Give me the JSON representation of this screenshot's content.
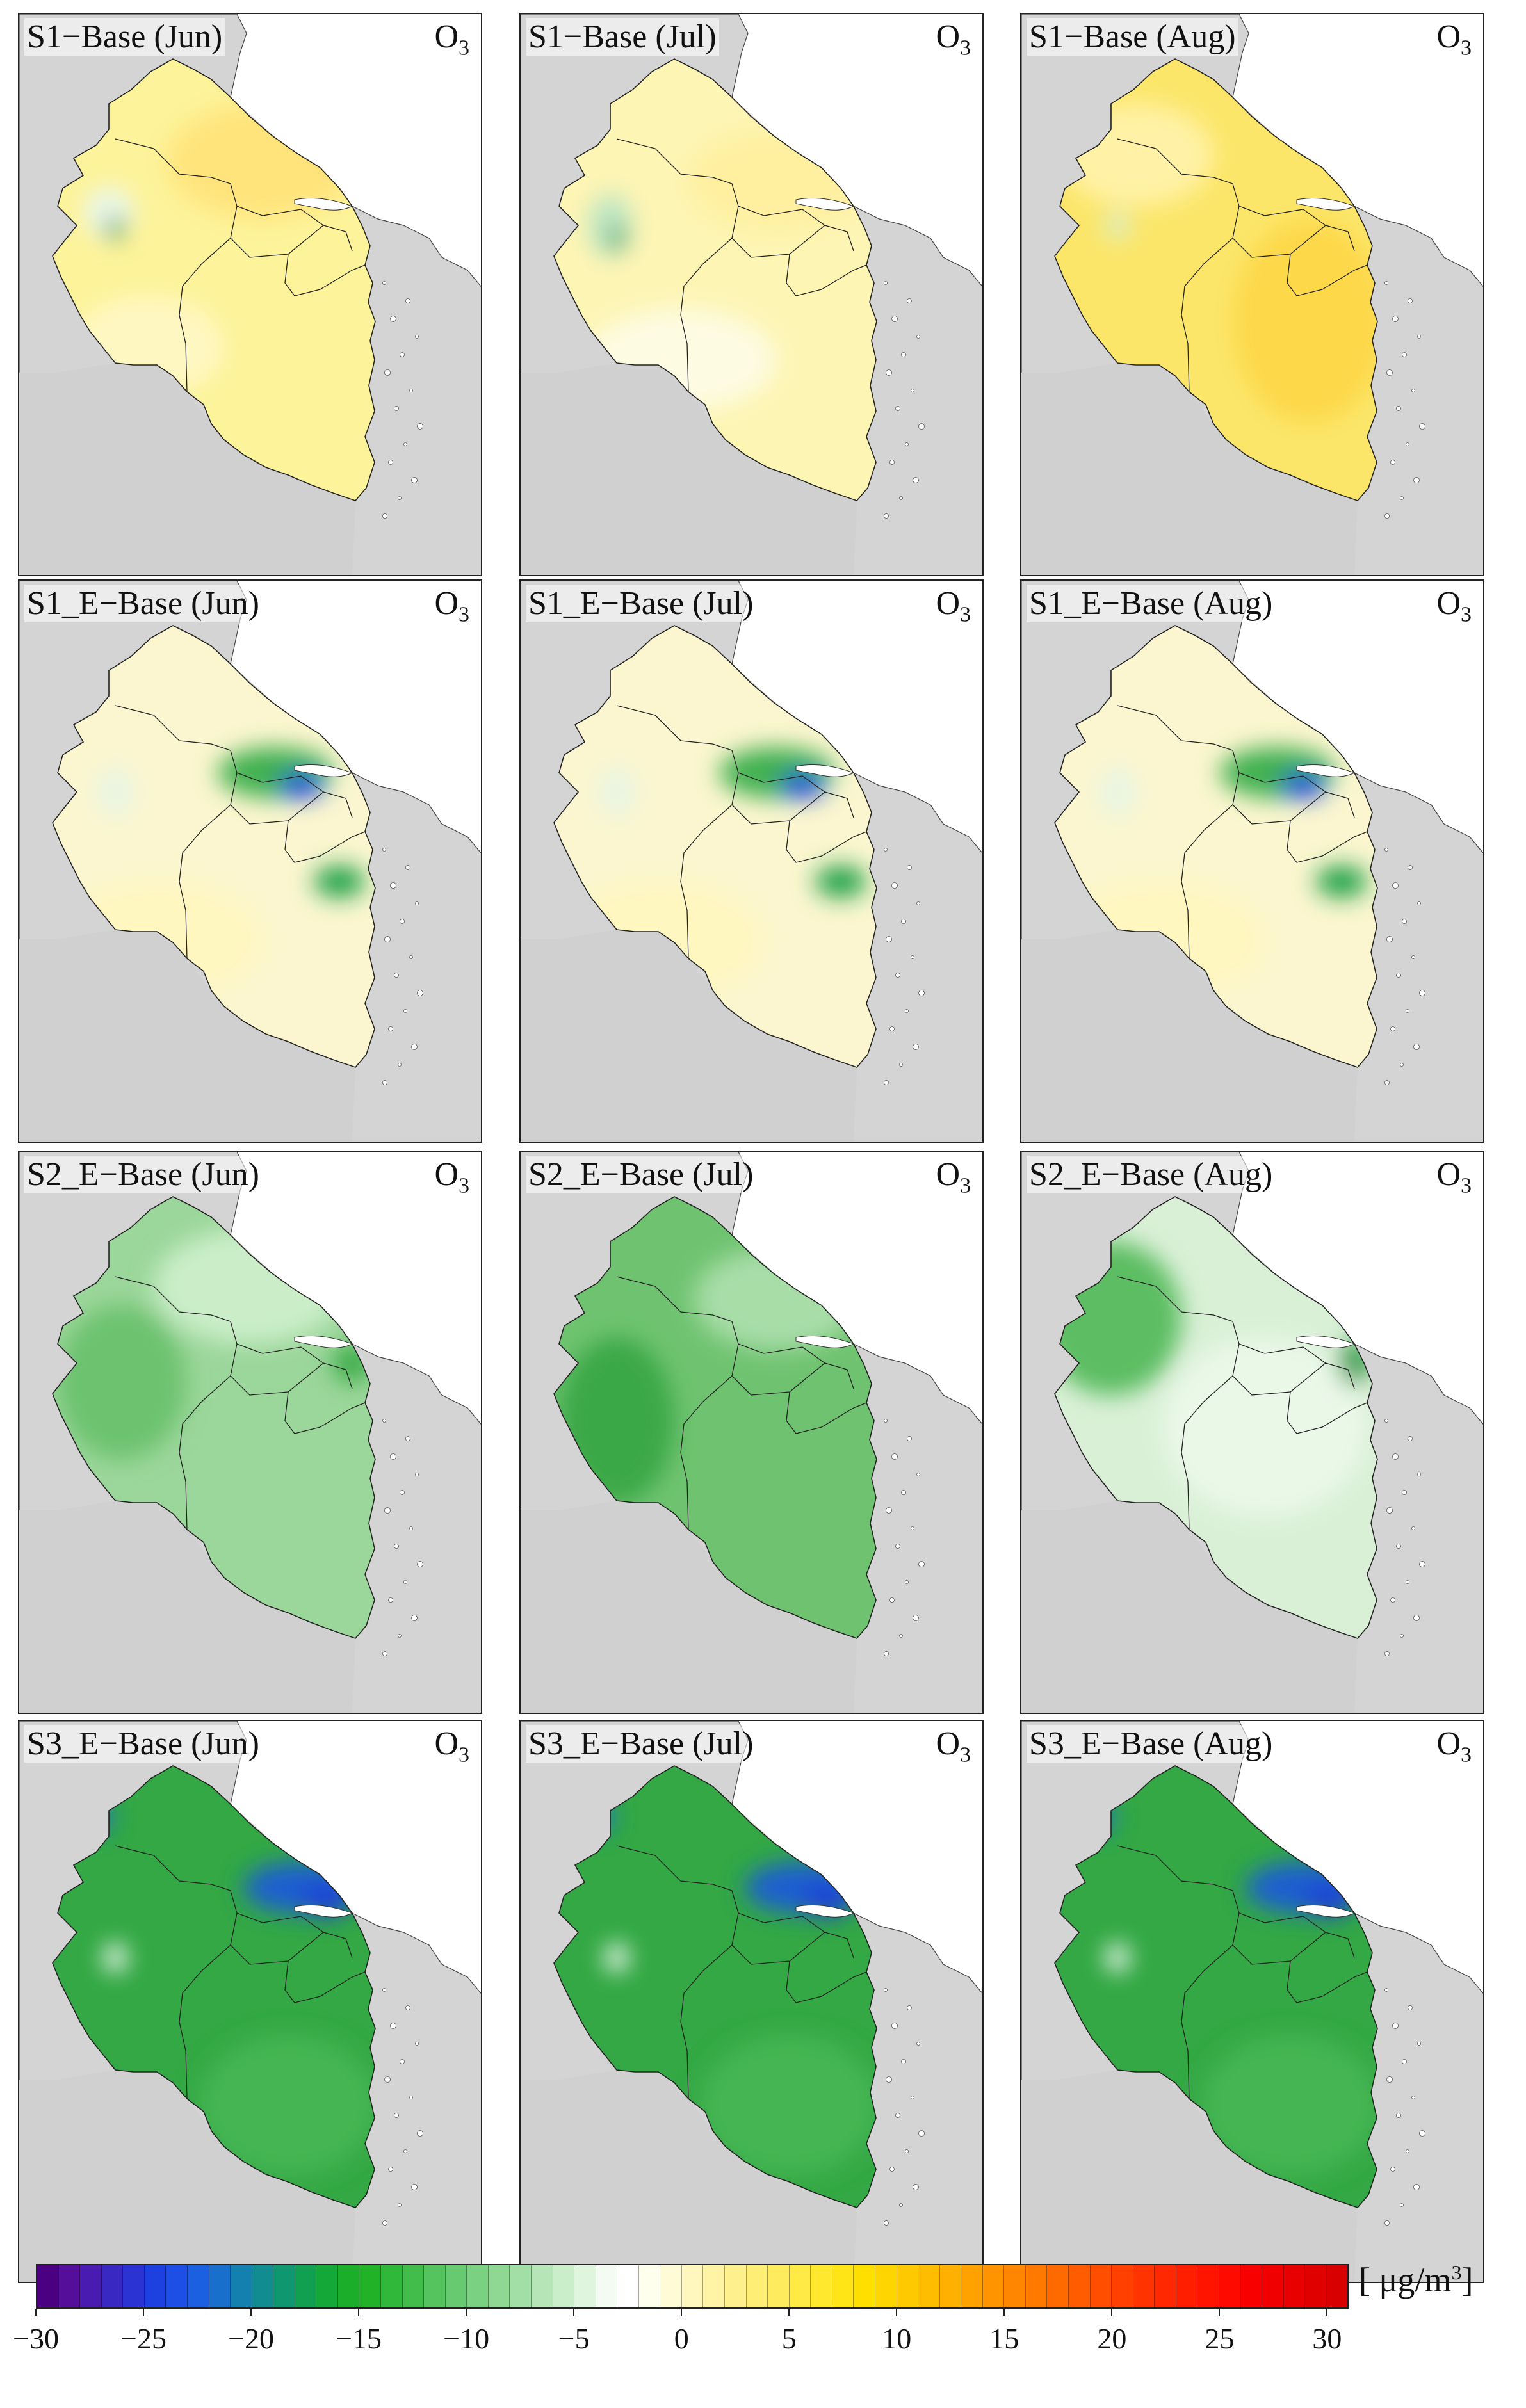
{
  "panels": [
    {
      "title": "S1−Base (Jun)",
      "species": "O",
      "species_sub": "3",
      "scheme": "yellow"
    },
    {
      "title": "S1−Base (Jul)",
      "species": "O",
      "species_sub": "3",
      "scheme": "yellow-light"
    },
    {
      "title": "S1−Base (Aug)",
      "species": "O",
      "species_sub": "3",
      "scheme": "yellow-strong"
    },
    {
      "title": "S1_E−Base (Jun)",
      "species": "O",
      "species_sub": "3",
      "scheme": "pale-hotspot"
    },
    {
      "title": "S1_E−Base (Jul)",
      "species": "O",
      "species_sub": "3",
      "scheme": "pale-hotspot"
    },
    {
      "title": "S1_E−Base (Aug)",
      "species": "O",
      "species_sub": "3",
      "scheme": "pale-hotspot"
    },
    {
      "title": "S2_E−Base (Jun)",
      "species": "O",
      "species_sub": "3",
      "scheme": "green"
    },
    {
      "title": "S2_E−Base (Jul)",
      "species": "O",
      "species_sub": "3",
      "scheme": "green-strong"
    },
    {
      "title": "S2_E−Base (Aug)",
      "species": "O",
      "species_sub": "3",
      "scheme": "green-light"
    },
    {
      "title": "S3_E−Base (Jun)",
      "species": "O",
      "species_sub": "3",
      "scheme": "green-deep"
    },
    {
      "title": "S3_E−Base (Jul)",
      "species": "O",
      "species_sub": "3",
      "scheme": "green-deep"
    },
    {
      "title": "S3_E−Base (Aug)",
      "species": "O",
      "species_sub": "3",
      "scheme": "green-deep"
    }
  ],
  "colorbar": {
    "unit_prefix": "[ μg/m",
    "unit_sup": "3",
    "unit_suffix": "]",
    "min": -30,
    "max": 31,
    "ticks": [
      "−30",
      "−25",
      "−20",
      "−15",
      "−10",
      "−5",
      "0",
      "5",
      "10",
      "15",
      "20",
      "25",
      "30"
    ],
    "tick_values": [
      -30,
      -25,
      -20,
      -15,
      -10,
      -5,
      0,
      5,
      10,
      15,
      20,
      25,
      30
    ],
    "colors": [
      "#4b0082",
      "#550e9a",
      "#4a1bb0",
      "#3a28c2",
      "#2b34d2",
      "#1d40e0",
      "#1d4fe6",
      "#1a60e0",
      "#1870cc",
      "#1480b0",
      "#118c90",
      "#0f9870",
      "#10a050",
      "#14a838",
      "#1aae2a",
      "#22b228",
      "#30b83a",
      "#42bd4c",
      "#55c35e",
      "#68ca70",
      "#7bd182",
      "#8ed894",
      "#a2dfa6",
      "#b6e6b8",
      "#cbeeca",
      "#e0f5de",
      "#f4fbf2",
      "#ffffff",
      "#ffffee",
      "#fffbd6",
      "#fff7be",
      "#fff3a6",
      "#fff08e",
      "#ffee76",
      "#ffec5e",
      "#ffea46",
      "#ffe82e",
      "#ffe416",
      "#ffdf00",
      "#ffd500",
      "#ffc900",
      "#ffbd00",
      "#ffb000",
      "#ffa200",
      "#ff9400",
      "#ff8600",
      "#ff7800",
      "#ff6a00",
      "#ff5c00",
      "#ff4e00",
      "#ff4000",
      "#ff3300",
      "#ff2800",
      "#ff1e00",
      "#ff1400",
      "#ff0a00",
      "#f80000",
      "#f00000",
      "#e80000",
      "#e00000",
      "#d80000"
    ]
  }
}
